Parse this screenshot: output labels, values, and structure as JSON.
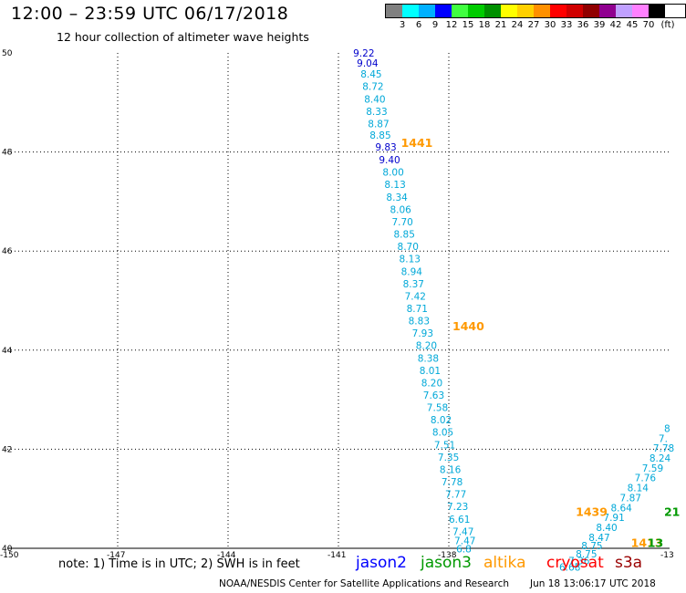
{
  "header": {
    "title": "12:00 – 23:59 UTC 06/17/2018",
    "subtitle": "12 hour collection of altimeter wave heights"
  },
  "legend": {
    "unit": "(ft)",
    "bins": [
      {
        "label": "3",
        "color": "#808080"
      },
      {
        "label": "6",
        "color": "#00ffff"
      },
      {
        "label": "9",
        "color": "#00b0ff"
      },
      {
        "label": "12",
        "color": "#0000ff"
      },
      {
        "label": "15",
        "color": "#40ff40"
      },
      {
        "label": "18",
        "color": "#00cc00"
      },
      {
        "label": "21",
        "color": "#009000"
      },
      {
        "label": "24",
        "color": "#ffff00"
      },
      {
        "label": "27",
        "color": "#ffd000"
      },
      {
        "label": "30",
        "color": "#ff9000"
      },
      {
        "label": "33",
        "color": "#ff0000"
      },
      {
        "label": "36",
        "color": "#d00000"
      },
      {
        "label": "39",
        "color": "#900000"
      },
      {
        "label": "42",
        "color": "#900090"
      },
      {
        "label": "45",
        "color": "#c0a0ff"
      },
      {
        "label": "70",
        "color": "#ff80ff"
      },
      {
        "label": "",
        "color": "#000000"
      }
    ]
  },
  "map": {
    "lon_range": [
      -150,
      -132
    ],
    "lat_range": [
      40,
      50
    ],
    "lon_ticks": [
      "-150",
      "-147",
      "-144",
      "-141",
      "-138",
      "-13"
    ],
    "lat_ticks": [
      "50",
      "48",
      "46",
      "44",
      "42",
      "40"
    ],
    "grid_lons": [
      -147,
      -144,
      -141,
      -138
    ],
    "grid_lats": [
      48,
      46,
      44,
      42
    ]
  },
  "track_west": {
    "color": "#00a8d8",
    "points": [
      {
        "lon": -140.6,
        "lat": 49.93,
        "v": "9.22",
        "c": "#0000cc"
      },
      {
        "lon": -140.5,
        "lat": 49.72,
        "v": "9.04",
        "c": "#0000cc"
      },
      {
        "lon": -140.4,
        "lat": 49.5,
        "v": "8.45"
      },
      {
        "lon": -140.35,
        "lat": 49.25,
        "v": "8.72"
      },
      {
        "lon": -140.3,
        "lat": 49.0,
        "v": "8.40"
      },
      {
        "lon": -140.25,
        "lat": 48.75,
        "v": "8.33"
      },
      {
        "lon": -140.2,
        "lat": 48.5,
        "v": "8.87"
      },
      {
        "lon": -140.15,
        "lat": 48.27,
        "v": "8.85"
      },
      {
        "lon": -140.0,
        "lat": 48.03,
        "v": "9.83",
        "c": "#0000cc"
      },
      {
        "lon": -139.9,
        "lat": 47.77,
        "v": "9.40",
        "c": "#0000cc"
      },
      {
        "lon": -139.8,
        "lat": 47.52,
        "v": "8.00"
      },
      {
        "lon": -139.75,
        "lat": 47.27,
        "v": "8.13"
      },
      {
        "lon": -139.7,
        "lat": 47.02,
        "v": "8.34"
      },
      {
        "lon": -139.6,
        "lat": 46.77,
        "v": "8.06"
      },
      {
        "lon": -139.55,
        "lat": 46.52,
        "v": "7.70"
      },
      {
        "lon": -139.5,
        "lat": 46.27,
        "v": "8.85"
      },
      {
        "lon": -139.4,
        "lat": 46.02,
        "v": "8.70"
      },
      {
        "lon": -139.35,
        "lat": 45.77,
        "v": "8.13"
      },
      {
        "lon": -139.3,
        "lat": 45.52,
        "v": "8.94"
      },
      {
        "lon": -139.25,
        "lat": 45.27,
        "v": "8.37"
      },
      {
        "lon": -139.2,
        "lat": 45.02,
        "v": "7.42"
      },
      {
        "lon": -139.15,
        "lat": 44.77,
        "v": "8.71"
      },
      {
        "lon": -139.1,
        "lat": 44.52,
        "v": "8.83"
      },
      {
        "lon": -139.0,
        "lat": 44.27,
        "v": "7.93"
      },
      {
        "lon": -138.9,
        "lat": 44.02,
        "v": "8.20"
      },
      {
        "lon": -138.85,
        "lat": 43.77,
        "v": "8.38"
      },
      {
        "lon": -138.8,
        "lat": 43.52,
        "v": "8.01"
      },
      {
        "lon": -138.75,
        "lat": 43.27,
        "v": "8.20"
      },
      {
        "lon": -138.7,
        "lat": 43.02,
        "v": "7.63"
      },
      {
        "lon": -138.6,
        "lat": 42.77,
        "v": "7.58"
      },
      {
        "lon": -138.5,
        "lat": 42.52,
        "v": "8.02"
      },
      {
        "lon": -138.45,
        "lat": 42.27,
        "v": "8.05"
      },
      {
        "lon": -138.4,
        "lat": 42.02,
        "v": "7.51"
      },
      {
        "lon": -138.3,
        "lat": 41.77,
        "v": "7.35"
      },
      {
        "lon": -138.25,
        "lat": 41.52,
        "v": "8.16"
      },
      {
        "lon": -138.2,
        "lat": 41.27,
        "v": "7.78"
      },
      {
        "lon": -138.1,
        "lat": 41.02,
        "v": "7.77"
      },
      {
        "lon": -138.05,
        "lat": 40.77,
        "v": "7.23"
      },
      {
        "lon": -138.0,
        "lat": 40.52,
        "v": "6.61"
      },
      {
        "lon": -137.9,
        "lat": 40.27,
        "v": "7.47"
      },
      {
        "lon": -137.85,
        "lat": 40.08,
        "v": "7.47"
      },
      {
        "lon": -137.8,
        "lat": 39.92,
        "v": "6.8"
      }
    ]
  },
  "track_east": {
    "color": "#00a8d8",
    "points": [
      {
        "lon": -132.15,
        "lat": 42.35,
        "v": "8"
      },
      {
        "lon": -132.3,
        "lat": 42.15,
        "v": "7."
      },
      {
        "lon": -132.45,
        "lat": 41.95,
        "v": "7.78"
      },
      {
        "lon": -132.55,
        "lat": 41.75,
        "v": "8.24"
      },
      {
        "lon": -132.75,
        "lat": 41.55,
        "v": "7.59"
      },
      {
        "lon": -132.95,
        "lat": 41.35,
        "v": "7.76"
      },
      {
        "lon": -133.15,
        "lat": 41.15,
        "v": "8.14"
      },
      {
        "lon": -133.35,
        "lat": 40.95,
        "v": "7.87"
      },
      {
        "lon": -133.6,
        "lat": 40.75,
        "v": "8.64"
      },
      {
        "lon": -133.8,
        "lat": 40.55,
        "v": "7.91"
      },
      {
        "lon": -134.0,
        "lat": 40.35,
        "v": "8.40"
      },
      {
        "lon": -134.2,
        "lat": 40.15,
        "v": "8.47"
      },
      {
        "lon": -134.4,
        "lat": 39.98,
        "v": "8.75"
      },
      {
        "lon": -134.55,
        "lat": 39.82,
        "v": "8.75"
      },
      {
        "lon": -134.75,
        "lat": 39.68,
        "v": "7.36"
      },
      {
        "lon": -135.0,
        "lat": 39.55,
        "v": "6.68"
      }
    ]
  },
  "time_labels": [
    {
      "lon": -139.3,
      "lat": 48.1,
      "text": "1441",
      "color": "#ff9900"
    },
    {
      "lon": -137.9,
      "lat": 44.4,
      "text": "1440",
      "color": "#ff9900"
    },
    {
      "lon": -134.55,
      "lat": 40.65,
      "text": "1439",
      "color": "#ff9900"
    },
    {
      "lon": -133.05,
      "lat": 40.03,
      "text": "1413",
      "color": "#ff9900"
    },
    {
      "lon": -132.6,
      "lat": 40.03,
      "text": "13",
      "color": "#009900"
    },
    {
      "lon": -132.15,
      "lat": 40.65,
      "text": "21",
      "color": "#009900"
    }
  ],
  "notes": {
    "text": "note:  1) Time is in UTC;  2) SWH is in feet"
  },
  "satellites": [
    {
      "name": "jason2",
      "color": "#0000ff"
    },
    {
      "name": "jason3",
      "color": "#009900"
    },
    {
      "name": "altika",
      "color": "#ff9900"
    },
    {
      "name": "cryosat",
      "color": "#ff0000"
    },
    {
      "name": "s3a",
      "color": "#990000"
    }
  ],
  "footer": {
    "credit": "NOAA/NESDIS Center for Satellite Applications and Research",
    "timestamp": "Jun 18 13:06:17 UTC 2018"
  }
}
